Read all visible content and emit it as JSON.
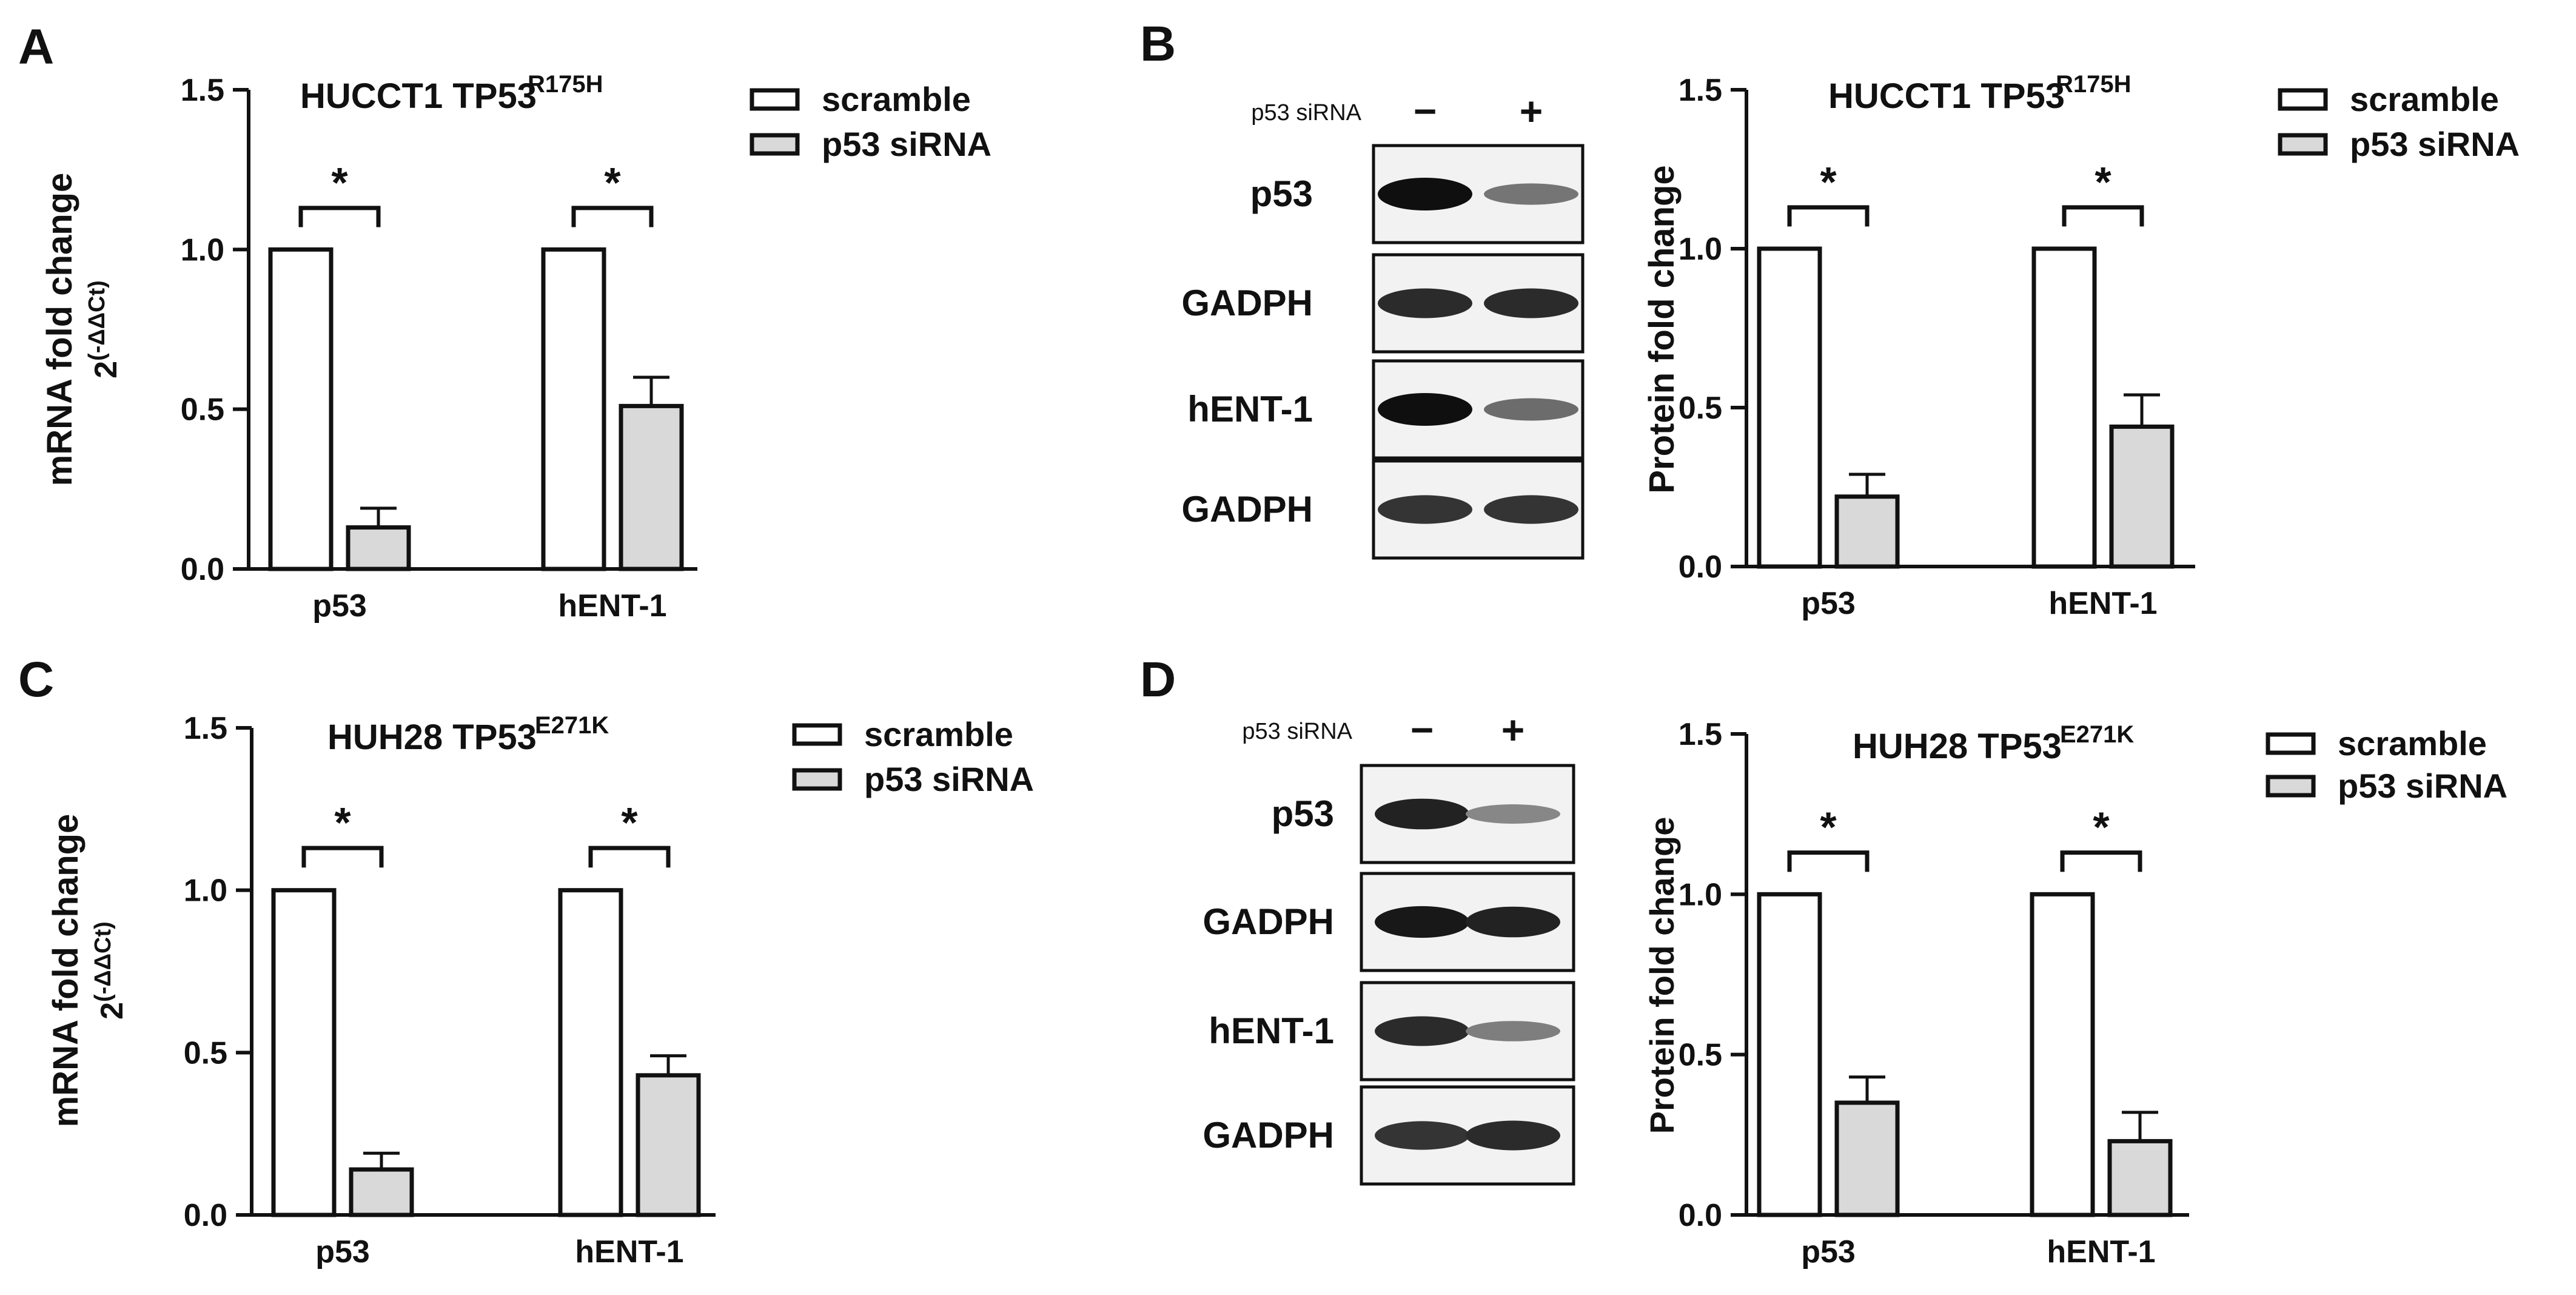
{
  "colors": {
    "scramble": "#ffffff",
    "sirna": "#d9d9d9",
    "ink": "#111111"
  },
  "chart_data": [
    {
      "panel": "A",
      "type": "bar",
      "title": "HUCCT1 TP53",
      "title_sup": "R175H",
      "ylabel": "mRNA fold change",
      "ylabel2": "2",
      "ylabel2_sup": "(-ΔΔCt)",
      "ylim": [
        0,
        1.5
      ],
      "yticks": [
        "0.0",
        "0.5",
        "1.0",
        "1.5"
      ],
      "categories": [
        "p53",
        "hENT-1"
      ],
      "series": [
        {
          "name": "scramble",
          "values": [
            1.0,
            1.0
          ],
          "errors": [
            0,
            0
          ]
        },
        {
          "name": "p53 siRNA",
          "values": [
            0.13,
            0.51
          ],
          "errors": [
            0.06,
            0.09
          ]
        }
      ],
      "significance": [
        "*",
        "*"
      ],
      "legend": "top-right",
      "grid": false
    },
    {
      "panel": "B",
      "type": "bar",
      "title": "HUCCT1 TP53",
      "title_sup": "R175H",
      "ylabel": "Protein fold change",
      "ylim": [
        0,
        1.5
      ],
      "yticks": [
        "0.0",
        "0.5",
        "1.0",
        "1.5"
      ],
      "categories": [
        "p53",
        "hENT-1"
      ],
      "series": [
        {
          "name": "scramble",
          "values": [
            1.0,
            1.0
          ],
          "errors": [
            0,
            0
          ]
        },
        {
          "name": "p53 siRNA",
          "values": [
            0.22,
            0.44
          ],
          "errors": [
            0.07,
            0.1
          ]
        }
      ],
      "significance": [
        "*",
        "*"
      ],
      "legend": "top-right",
      "grid": false
    },
    {
      "panel": "C",
      "type": "bar",
      "title": "HUH28 TP53",
      "title_sup": "E271K",
      "ylabel": "mRNA fold change",
      "ylabel2": "2",
      "ylabel2_sup": "(-ΔΔCt)",
      "ylim": [
        0,
        1.5
      ],
      "yticks": [
        "0.0",
        "0.5",
        "1.0",
        "1.5"
      ],
      "categories": [
        "p53",
        "hENT-1"
      ],
      "series": [
        {
          "name": "scramble",
          "values": [
            1.0,
            1.0
          ],
          "errors": [
            0,
            0
          ]
        },
        {
          "name": "p53 siRNA",
          "values": [
            0.14,
            0.43
          ],
          "errors": [
            0.05,
            0.06
          ]
        }
      ],
      "significance": [
        "*",
        "*"
      ],
      "legend": "top-right",
      "grid": false
    },
    {
      "panel": "D",
      "type": "bar",
      "title": "HUH28 TP53",
      "title_sup": "E271K",
      "ylabel": "Protein fold change",
      "ylim": [
        0,
        1.5
      ],
      "yticks": [
        "0.0",
        "0.5",
        "1.0",
        "1.5"
      ],
      "categories": [
        "p53",
        "hENT-1"
      ],
      "series": [
        {
          "name": "scramble",
          "values": [
            1.0,
            1.0
          ],
          "errors": [
            0,
            0
          ]
        },
        {
          "name": "p53 siRNA",
          "values": [
            0.35,
            0.23
          ],
          "errors": [
            0.08,
            0.09
          ]
        }
      ],
      "significance": [
        "*",
        "*"
      ],
      "legend": "top-right",
      "grid": false
    }
  ],
  "blots": [
    {
      "panel": "B",
      "treatment_label": "p53 siRNA",
      "lanes": [
        "−",
        "+"
      ],
      "rows": [
        {
          "label": "p53",
          "intensity": [
            1.0,
            0.45
          ]
        },
        {
          "label": "GADPH",
          "intensity": [
            0.85,
            0.85
          ]
        },
        {
          "label": "hENT-1",
          "intensity": [
            1.0,
            0.5
          ]
        },
        {
          "label": "GADPH",
          "intensity": [
            0.8,
            0.8
          ]
        }
      ]
    },
    {
      "panel": "D",
      "treatment_label": "p53 siRNA",
      "lanes": [
        "−",
        "+"
      ],
      "rows": [
        {
          "label": "p53",
          "intensity": [
            0.9,
            0.35
          ]
        },
        {
          "label": "GADPH",
          "intensity": [
            0.95,
            0.9
          ]
        },
        {
          "label": "hENT-1",
          "intensity": [
            0.85,
            0.4
          ]
        },
        {
          "label": "GADPH",
          "intensity": [
            0.8,
            0.85
          ]
        }
      ]
    }
  ]
}
